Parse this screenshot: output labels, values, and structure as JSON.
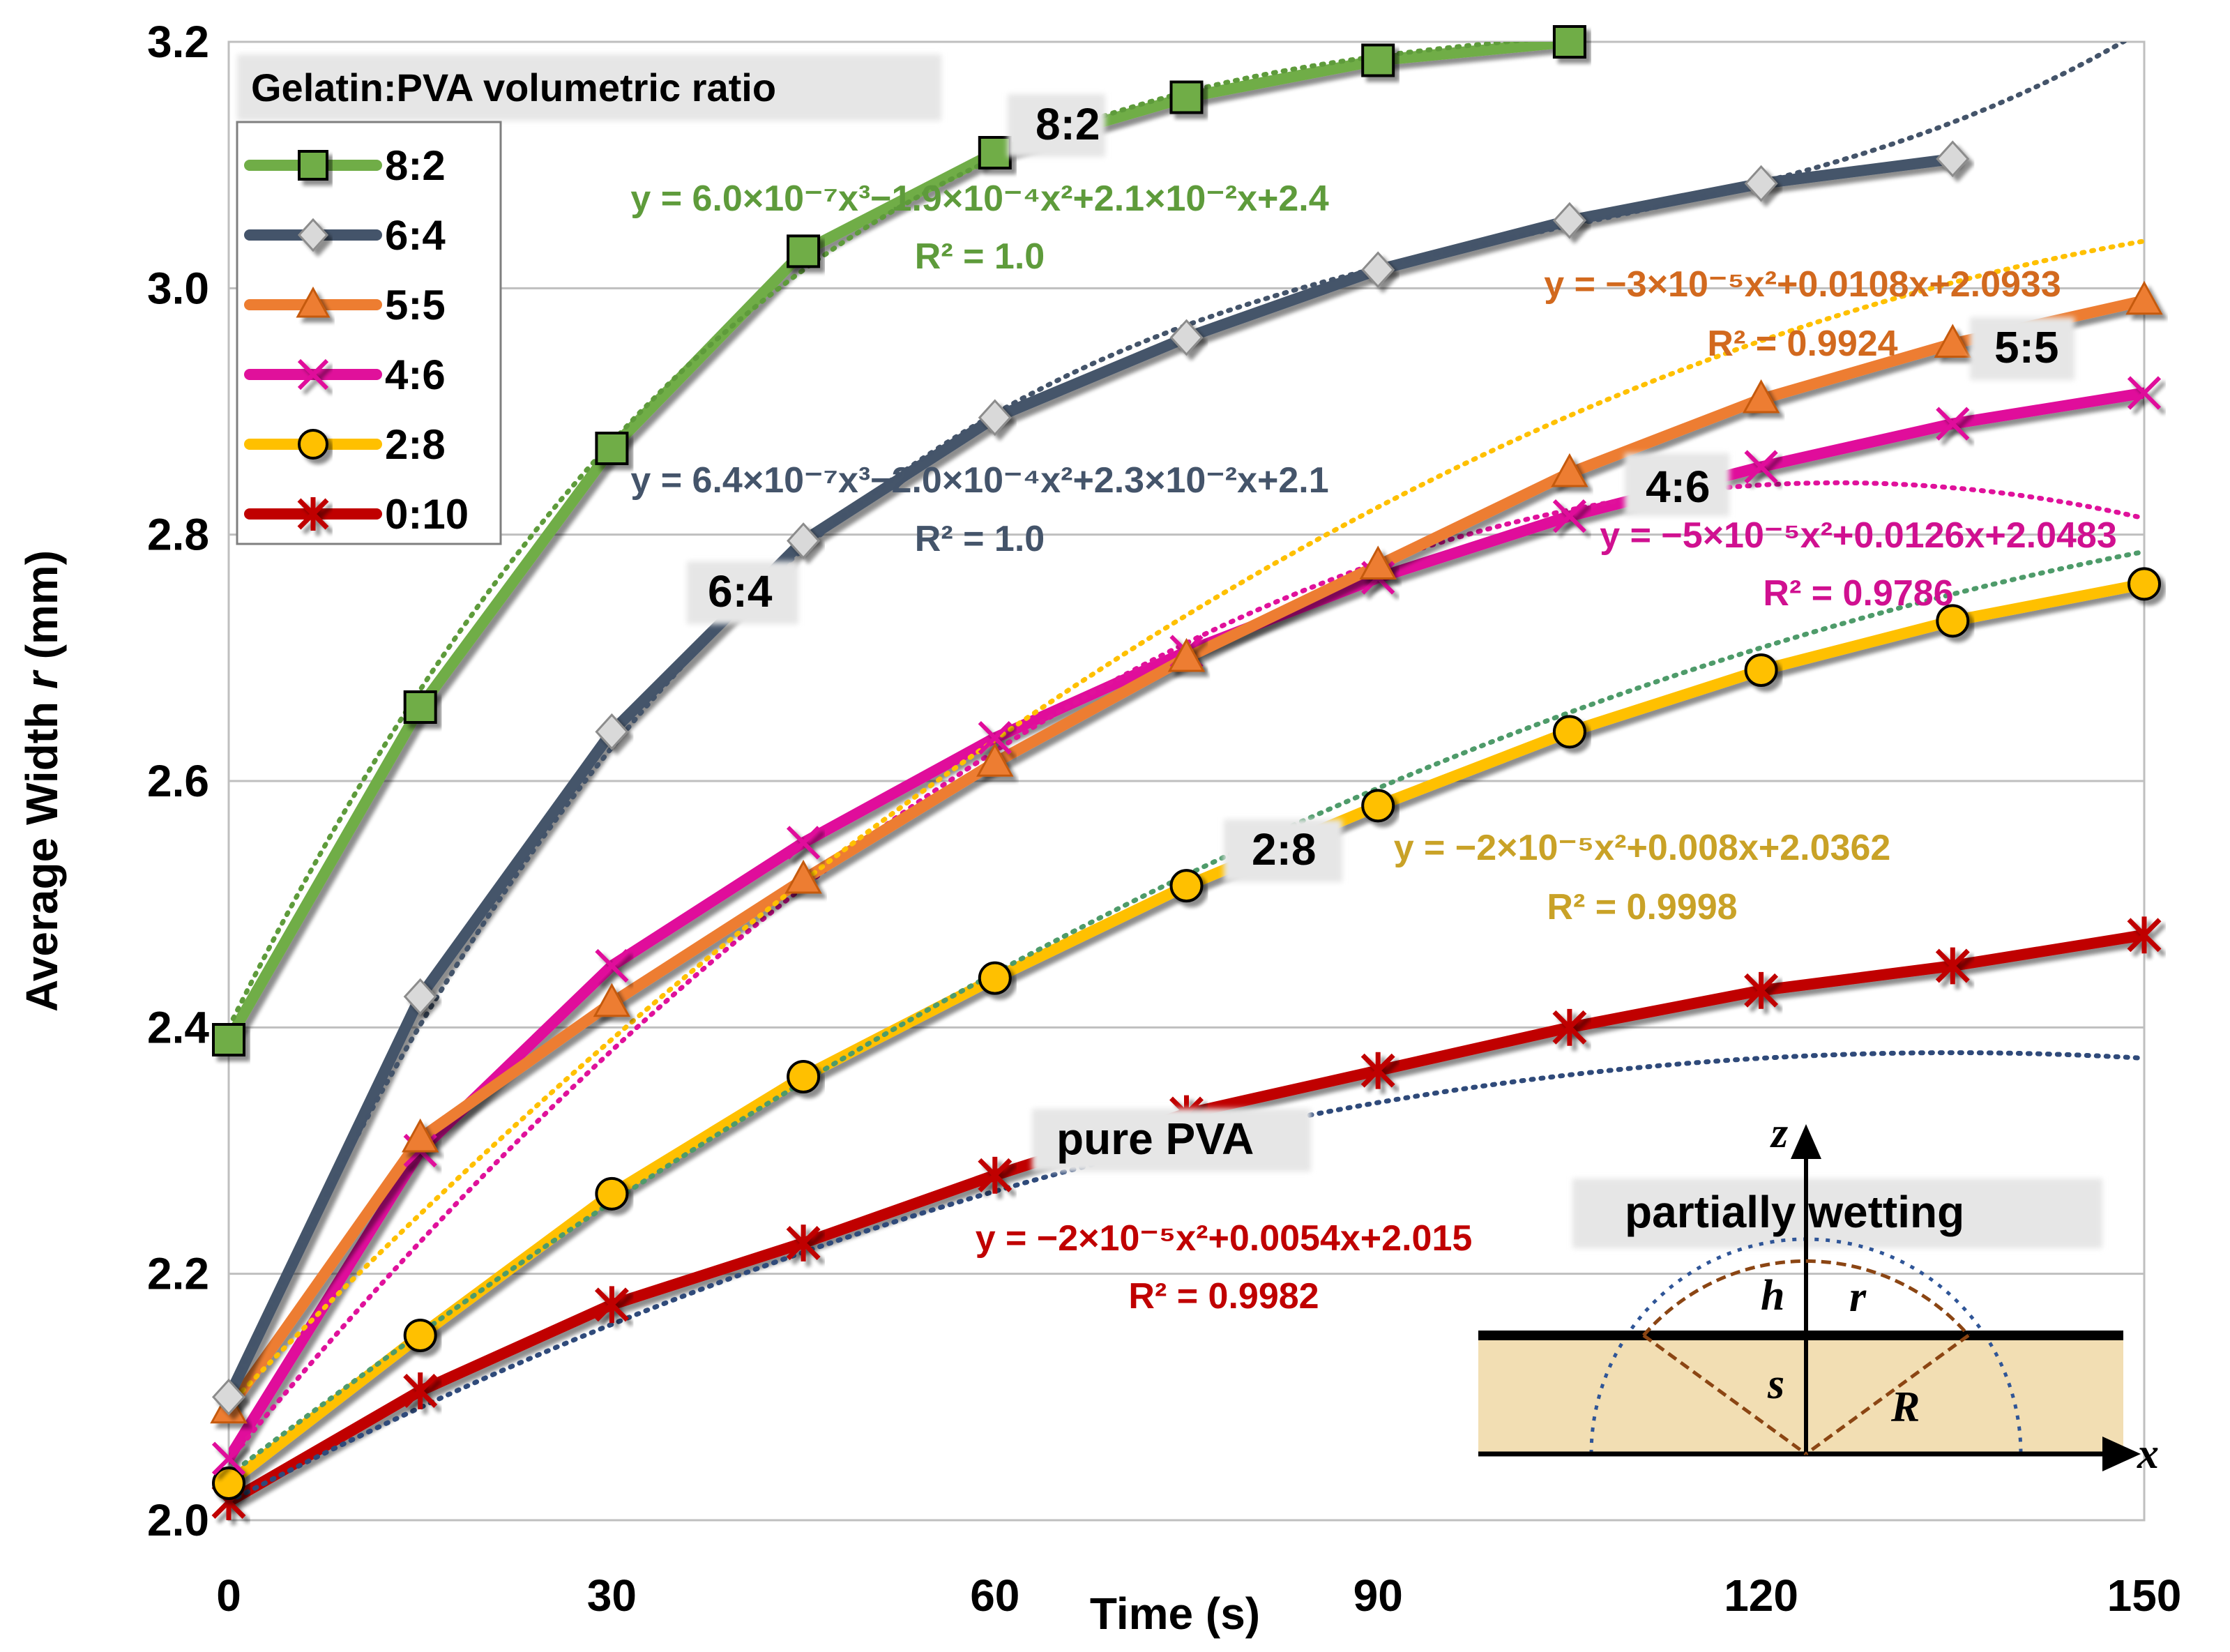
{
  "chart_data": {
    "type": "line",
    "title": "",
    "xlabel": "Time (s)",
    "ylabel_prefix": "Average Width ",
    "ylabel_var": "r",
    "ylabel_suffix": " (mm)",
    "xlim": [
      0,
      150
    ],
    "ylim": [
      2.0,
      3.2
    ],
    "xticks": [
      0,
      30,
      60,
      90,
      120,
      150
    ],
    "yticks": [
      "2.0",
      "2.2",
      "2.4",
      "2.6",
      "2.8",
      "3.0",
      "3.2"
    ],
    "grid": "horizontal",
    "legend_title": "Gelatin:PVA volumetric ratio",
    "x": [
      0,
      15,
      30,
      45,
      60,
      75,
      90,
      105,
      120,
      135,
      150
    ],
    "series": [
      {
        "name": "8:2",
        "color": "#70AD47",
        "marker": "square",
        "x": [
          0,
          15,
          30,
          45,
          60,
          75,
          90,
          105
        ],
        "values": [
          2.39,
          2.66,
          2.87,
          3.03,
          3.11,
          3.155,
          3.185,
          3.2
        ],
        "fit_color": "#5E9B3B",
        "fit": {
          "type": "cubic",
          "coef": [
            6e-07,
            -0.00019,
            0.021,
            2.4
          ]
        }
      },
      {
        "name": "6:4",
        "color": "#44546A",
        "marker": "diamond",
        "x": [
          0,
          15,
          30,
          45,
          60,
          75,
          90,
          105,
          120,
          135
        ],
        "values": [
          2.1,
          2.425,
          2.64,
          2.795,
          2.895,
          2.96,
          3.015,
          3.055,
          3.085,
          3.105
        ],
        "fit_color": "#44546A",
        "fit": {
          "type": "cubic",
          "coef": [
            6.4e-07,
            -0.0002,
            0.023,
            2.1
          ]
        }
      },
      {
        "name": "5:5",
        "color": "#ED7D31",
        "marker": "triangle",
        "x": [
          0,
          15,
          30,
          45,
          60,
          75,
          90,
          105,
          120,
          135,
          150
        ],
        "values": [
          2.09,
          2.31,
          2.42,
          2.52,
          2.615,
          2.7,
          2.775,
          2.85,
          2.91,
          2.955,
          2.99
        ],
        "fit_color": "#FFC000",
        "fit": {
          "type": "quadratic",
          "coef": [
            -3e-05,
            0.0108,
            2.0933
          ]
        }
      },
      {
        "name": "4:6",
        "color": "#E0119B",
        "marker": "x",
        "x": [
          0,
          15,
          30,
          45,
          60,
          75,
          90,
          105,
          120,
          135,
          150
        ],
        "values": [
          2.05,
          2.3,
          2.45,
          2.55,
          2.635,
          2.705,
          2.765,
          2.815,
          2.855,
          2.89,
          2.915
        ],
        "fit_color": "#E0119B",
        "fit": {
          "type": "quadratic",
          "coef": [
            -5e-05,
            0.0126,
            2.0483
          ]
        }
      },
      {
        "name": "2:8",
        "color": "#FFC000",
        "marker": "circle",
        "x": [
          0,
          15,
          30,
          45,
          60,
          75,
          90,
          105,
          120,
          135,
          150
        ],
        "values": [
          2.03,
          2.15,
          2.265,
          2.36,
          2.44,
          2.515,
          2.58,
          2.64,
          2.69,
          2.73,
          2.76
        ],
        "fit_color": "#4E9B6A",
        "fit": {
          "type": "quadratic",
          "coef": [
            -2e-05,
            0.008,
            2.0362
          ]
        }
      },
      {
        "name": "0:10",
        "color": "#C00000",
        "marker": "asterisk",
        "x": [
          0,
          15,
          30,
          45,
          60,
          75,
          90,
          105,
          120,
          135,
          150
        ],
        "values": [
          2.015,
          2.105,
          2.175,
          2.225,
          2.28,
          2.33,
          2.365,
          2.4,
          2.43,
          2.45,
          2.475
        ],
        "fit_color": "#2F4A7A",
        "fit": {
          "type": "quadratic",
          "coef": [
            -2e-05,
            0.0054,
            2.015
          ]
        }
      }
    ],
    "annotations": {
      "eq_82_line1": "y = 6.0×10⁻⁷x³−1.9×10⁻⁴x²+2.1×10⁻²x+2.4",
      "eq_82_line2": "R² = 1.0",
      "eq_64_line1": "y = 6.4×10⁻⁷x³−2.0×10⁻⁴x²+2.3×10⁻²x+2.1",
      "eq_64_line2": "R² = 1.0",
      "eq_55_line1": "y = −3×10⁻⁵x²+0.0108x+2.0933",
      "eq_55_line2": "R² = 0.9924",
      "eq_46_line1": "y = −5×10⁻⁵x²+0.0126x+2.0483",
      "eq_46_line2": "R² = 0.9786",
      "eq_28_line1": "y = −2×10⁻⁵x²+0.008x+2.0362",
      "eq_28_line2": "R² = 0.9998",
      "eq_010_line1": "y = −2×10⁻⁵x²+0.0054x+2.015",
      "eq_010_line2": "R² = 0.9982",
      "label_82": "8:2",
      "label_64": "6:4",
      "label_55": "5:5",
      "label_46": "4:6",
      "label_28": "2:8",
      "label_010": "pure PVA"
    },
    "inset": {
      "title": "partially wetting",
      "axis_x": "x",
      "axis_z": "z",
      "label_h": "h",
      "label_r": "r",
      "label_s": "s",
      "label_R": "R"
    }
  },
  "colors": {
    "eq_82": "#5E9B3B",
    "eq_64": "#44546A",
    "eq_55": "#D2691E",
    "eq_46": "#D01090",
    "eq_28": "#C9A227",
    "eq_010": "#C00000",
    "substrate": "#F2DEB3"
  }
}
